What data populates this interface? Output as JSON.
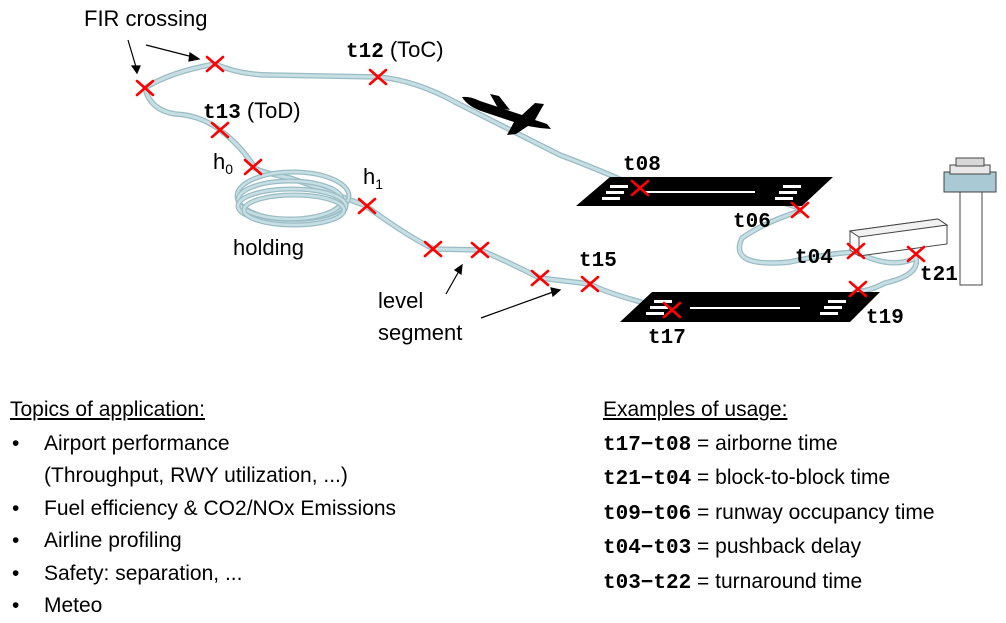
{
  "diagram": {
    "fir_label": "FIR crossing",
    "toc_code": "t12",
    "toc_paren": "(ToC)",
    "tod_code": "t13",
    "tod_paren": "(ToD)",
    "h0_base": "h",
    "h0_sub": "0",
    "h1_base": "h",
    "h1_sub": "1",
    "holding_label": "holding",
    "level_label_line1": "level",
    "level_label_line2": "segment",
    "events": {
      "t08": "t08",
      "t06": "t06",
      "t04": "t04",
      "t21": "t21",
      "t19": "t19",
      "t17": "t17",
      "t15": "t15"
    },
    "colors": {
      "path": "#c5dfe5",
      "marker": "#ff0000",
      "runway": "#000000"
    }
  },
  "topics": {
    "heading": "Topics of application:",
    "items": [
      {
        "bullet": "•",
        "text": "Airport performance"
      },
      {
        "bullet": "",
        "text": "(Throughput, RWY utilization, ...)"
      },
      {
        "bullet": "•",
        "text": "Fuel efficiency & CO2/NOx Emissions"
      },
      {
        "bullet": "•",
        "text": "Airline profiling"
      },
      {
        "bullet": "•",
        "text": "Safety: separation, ..."
      },
      {
        "bullet": "•",
        "text": "Meteo"
      }
    ]
  },
  "examples": {
    "heading": "Examples of usage:",
    "items": [
      {
        "expr": "t17−t08",
        "desc": " = airborne time"
      },
      {
        "expr": "t21−t04",
        "desc": " = block-to-block time"
      },
      {
        "expr": "t09−t06",
        "desc": " = runway occupancy time"
      },
      {
        "expr": "t04−t03",
        "desc": " = pushback delay"
      },
      {
        "expr": "t03−t22",
        "desc": " = turnaround time"
      }
    ]
  }
}
